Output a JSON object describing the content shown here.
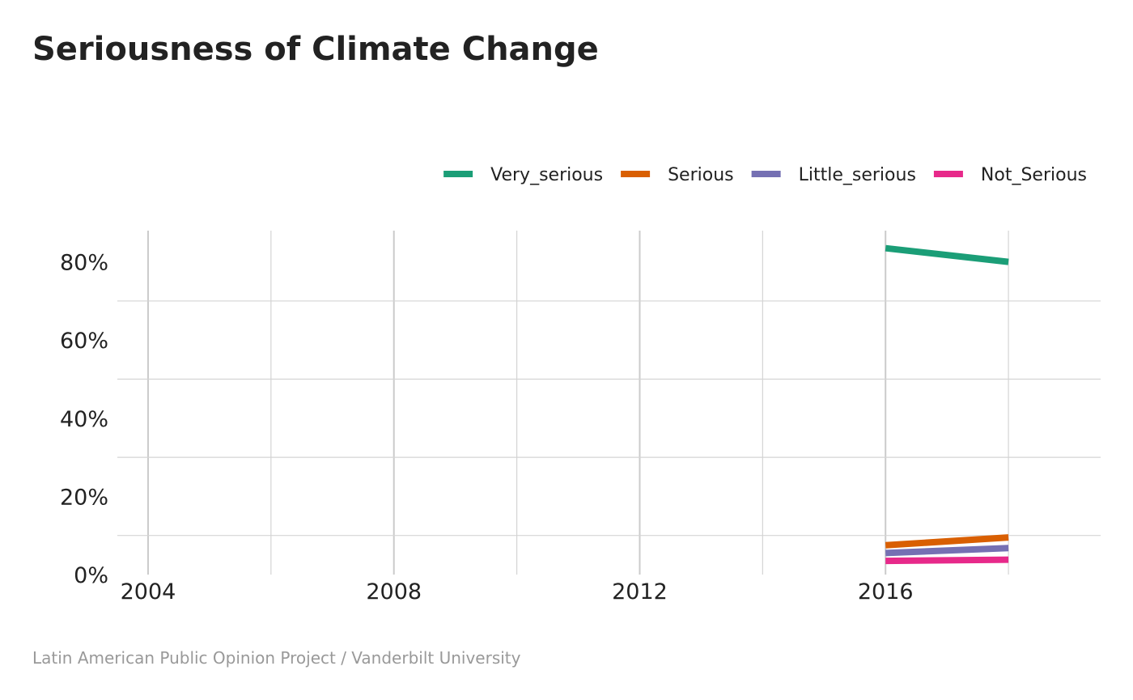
{
  "chart_data": {
    "type": "line",
    "title": "Seriousness of Climate Change",
    "caption": "Latin American Public Opinion Project / Vanderbilt University",
    "xlabel": "",
    "ylabel": "",
    "x": [
      2016,
      2018
    ],
    "xlim": [
      2003.5,
      2019.5
    ],
    "x_ticks": [
      2004,
      2008,
      2012,
      2016
    ],
    "x_tick_labels": [
      "2004",
      "2008",
      "2012",
      "2016"
    ],
    "ylim": [
      0,
      88
    ],
    "y_ticks": [
      0,
      20,
      40,
      60,
      80
    ],
    "y_tick_labels": [
      "0%",
      "20%",
      "40%",
      "60%",
      "80%"
    ],
    "grid": true,
    "legend_position": "top-right",
    "series": [
      {
        "name": "Very_serious",
        "color": "#1b9e77",
        "values": [
          83.5,
          80
        ]
      },
      {
        "name": "Serious",
        "color": "#d95f02",
        "values": [
          7.5,
          9.5
        ]
      },
      {
        "name": "Little_serious",
        "color": "#7570b3",
        "values": [
          5.5,
          6.8
        ]
      },
      {
        "name": "Not_Serious",
        "color": "#e7298a",
        "values": [
          3.5,
          3.8
        ]
      }
    ]
  }
}
